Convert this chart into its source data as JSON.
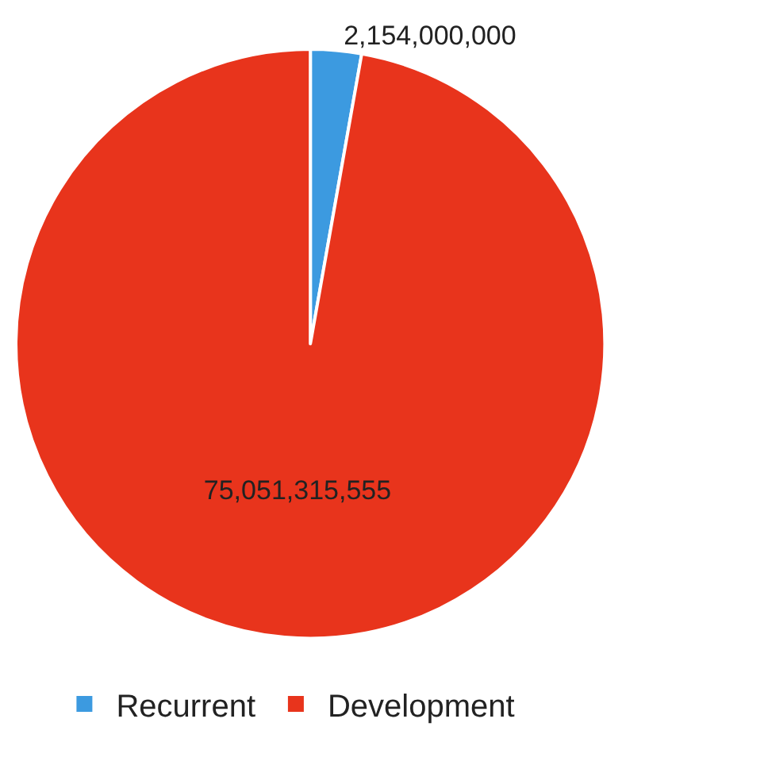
{
  "chart_data": {
    "type": "pie",
    "categories": [
      "Recurrent",
      "Development"
    ],
    "values": [
      2154000000,
      75051315555
    ],
    "value_labels": [
      "2,154,000,000",
      "75,051,315,555"
    ],
    "colors": [
      "#3c9ae0",
      "#e8341c"
    ],
    "legend": "bottom"
  }
}
